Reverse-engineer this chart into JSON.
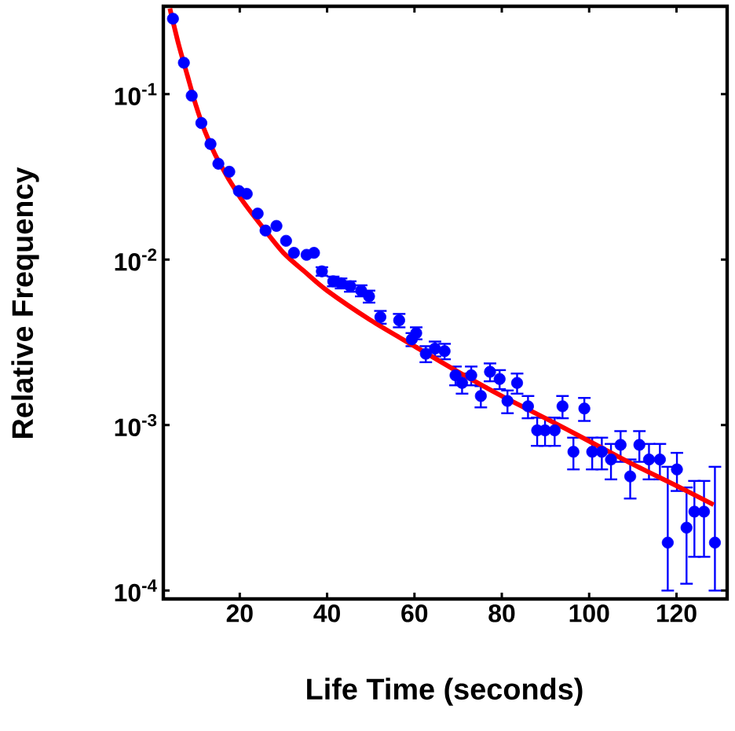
{
  "chart_data": {
    "type": "scatter",
    "xlabel": "Life Time (seconds)",
    "ylabel": "Relative Frequency",
    "log": "y",
    "grid": false,
    "xlim": [
      2.5,
      131.6
    ],
    "ylim": [
      8.9e-05,
      0.34
    ],
    "xticks": [
      20,
      40,
      60,
      80,
      100,
      120
    ],
    "yticks": [
      {
        "value": 0.0001,
        "label": "10$^{-4}$"
      },
      {
        "value": 0.001,
        "label": "10$^{-3}$"
      },
      {
        "value": 0.01,
        "label": "10$^{-2}$"
      },
      {
        "value": 0.1,
        "label": "10$^{-1}$"
      }
    ],
    "series": [
      {
        "color": "#0000ff",
        "marker": "circle",
        "x": [
          4.7,
          7.2,
          9,
          11.2,
          13.3,
          15.1,
          17.6,
          19.8,
          21.6,
          24.1,
          25.9,
          28.4,
          30.6,
          32.4,
          35.3,
          37,
          38.8,
          41.4,
          43.2,
          45.3,
          47.8,
          49.6,
          52.2,
          56.5,
          59.4,
          60.4,
          62.6,
          64.7,
          66.9,
          69.4,
          70.9,
          73,
          75.2,
          77.3,
          79.5,
          81.3,
          83.5,
          86,
          88.1,
          89.9,
          92.1,
          93.9,
          96.4,
          98.9,
          100.7,
          102.9,
          105,
          107.2,
          109.4,
          111.5,
          113.7,
          116.2,
          118,
          120.1,
          122.3,
          124.1,
          126.3,
          128.8
        ],
        "values": [
          0.286,
          0.155,
          0.098,
          0.067,
          0.05,
          0.038,
          0.034,
          0.026,
          0.025,
          0.019,
          0.015,
          0.016,
          0.013,
          0.011,
          0.0107,
          0.011,
          0.0085,
          0.0074,
          0.0072,
          0.0069,
          0.0065,
          0.006,
          0.0045,
          0.0043,
          0.0033,
          0.0036,
          0.0027,
          0.0029,
          0.0028,
          0.002,
          0.0018,
          0.002,
          0.0015,
          0.0021,
          0.0019,
          0.0014,
          0.0018,
          0.0013,
          0.00093,
          0.00093,
          0.00093,
          0.0013,
          0.00069,
          0.00126,
          0.00069,
          0.00069,
          0.00062,
          0.00076,
          0.00049,
          0.00076,
          0.00062,
          0.00062,
          0.000195,
          0.00054,
          0.00024,
          0.0003,
          0.0003,
          0.000195
        ],
        "errors": [
          null,
          null,
          null,
          null,
          null,
          null,
          null,
          null,
          null,
          null,
          null,
          null,
          null,
          null,
          null,
          null,
          0.0005,
          0.0005,
          0.0005,
          0.0005,
          0.0005,
          0.0005,
          0.0004,
          0.0004,
          0.0003,
          0.0003,
          0.0003,
          0.0003,
          0.0003,
          0.00026,
          0.00025,
          0.00026,
          0.00022,
          0.00026,
          0.00025,
          0.00022,
          0.00025,
          0.0002,
          0.00018,
          0.00018,
          0.00018,
          0.0002,
          0.00015,
          0.0002,
          0.00015,
          0.00015,
          0.00015,
          0.00016,
          0.00013,
          0.00016,
          0.00015,
          0.00015,
          [
            0.0001,
            0.00056
          ],
          0.00014,
          [
            0.00011,
            0.00042
          ],
          [
            0.00016,
            0.00046
          ],
          [
            0.00016,
            0.00046
          ],
          [
            0.0001,
            0.00056
          ]
        ]
      },
      {
        "type": "line",
        "color": "#ff0000",
        "marker": "none",
        "x": [
          4,
          6,
          8,
          10,
          12,
          15,
          20,
          25,
          30,
          35,
          40,
          50,
          60,
          70,
          80,
          90,
          100,
          110,
          120,
          128.5
        ],
        "values": [
          0.33,
          0.2,
          0.13,
          0.085,
          0.06,
          0.04,
          0.024,
          0.016,
          0.011,
          0.0084,
          0.0065,
          0.0043,
          0.003,
          0.0021,
          0.0015,
          0.0011,
          0.0008,
          0.00058,
          0.00043,
          0.00033
        ]
      }
    ]
  }
}
